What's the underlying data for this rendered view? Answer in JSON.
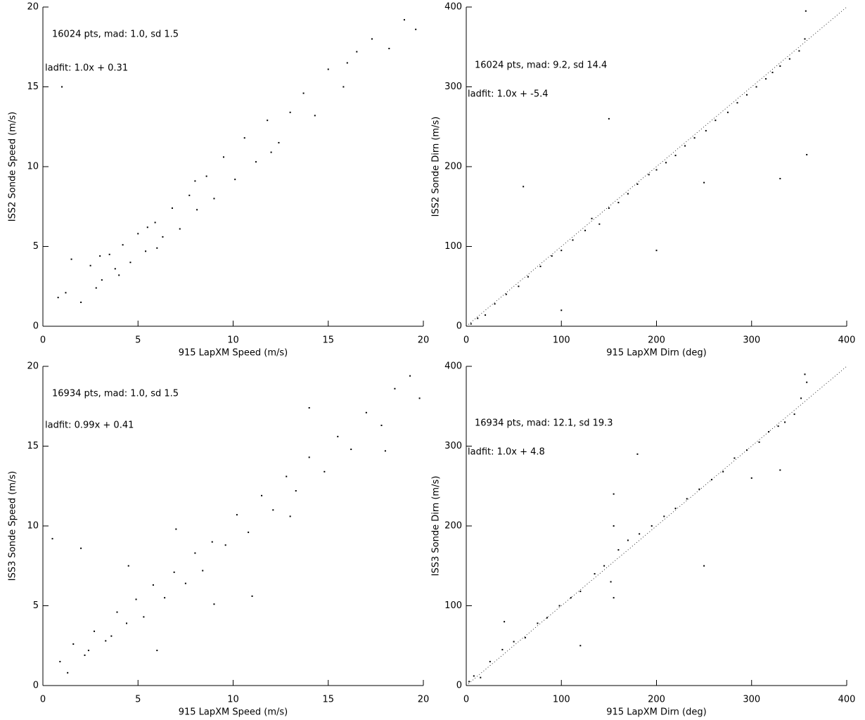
{
  "chart_data": [
    {
      "type": "scatter",
      "color": "#000000",
      "identity_line": false,
      "xlabel": "915 LapXM Speed (m/s)",
      "ylabel": "ISS2 Sonde Speed (m/s)",
      "annotations": [
        "16024 pts, mad: 1.0, sd 1.5",
        "ladfit: 1.0x + 0.31"
      ],
      "xlim": [
        0,
        20
      ],
      "ylim": [
        0,
        20
      ],
      "xticks": [
        0,
        5,
        10,
        15,
        20
      ],
      "yticks": [
        0,
        5,
        10,
        15,
        20
      ],
      "x": [
        1.2,
        2.0,
        2.5,
        3.1,
        3.5,
        3.8,
        4.2,
        4.6,
        5.0,
        5.4,
        5.9,
        6.3,
        6.8,
        7.2,
        7.7,
        8.1,
        8.6,
        9.0,
        9.5,
        10.1,
        10.6,
        11.2,
        11.8,
        12.4,
        13.0,
        13.7,
        14.3,
        15.0,
        15.8,
        16.5,
        17.3,
        18.2,
        19.0,
        19.6,
        2.8,
        4.0,
        6.0,
        8.0,
        1.5,
        0.8,
        3.0,
        5.5,
        12.0,
        1.0,
        16.0
      ],
      "y": [
        2.1,
        1.5,
        3.8,
        2.9,
        4.5,
        3.6,
        5.1,
        4.0,
        5.8,
        4.7,
        6.5,
        5.6,
        7.4,
        6.1,
        8.2,
        7.3,
        9.4,
        8.0,
        10.6,
        9.2,
        11.8,
        10.3,
        12.9,
        11.5,
        13.4,
        14.6,
        13.2,
        16.1,
        15.0,
        17.2,
        18.0,
        17.4,
        19.2,
        18.6,
        2.4,
        3.2,
        4.9,
        9.1,
        4.2,
        1.8,
        4.4,
        6.2,
        10.9,
        15.0,
        16.5
      ]
    },
    {
      "type": "scatter",
      "color": "#000000",
      "identity_line": true,
      "xlabel": "915 LapXM Dirn (deg)",
      "ylabel": "ISS2 Sonde Dirn (m/s)",
      "annotations": [
        "16024 pts, mad: 9.2, sd 14.4",
        "ladfit: 1.0x + -5.4"
      ],
      "xlim": [
        0,
        400
      ],
      "ylim": [
        0,
        400
      ],
      "xticks": [
        0,
        100,
        200,
        300,
        400
      ],
      "yticks": [
        0,
        100,
        200,
        300,
        400
      ],
      "x": [
        5,
        12,
        20,
        30,
        42,
        55,
        65,
        78,
        90,
        100,
        112,
        125,
        132,
        140,
        150,
        160,
        170,
        180,
        192,
        200,
        210,
        220,
        230,
        240,
        252,
        262,
        275,
        285,
        295,
        305,
        315,
        322,
        330,
        340,
        350,
        356,
        358,
        60,
        150,
        250,
        330,
        357,
        100,
        200
      ],
      "y": [
        3,
        10,
        14,
        28,
        40,
        50,
        62,
        75,
        88,
        95,
        108,
        120,
        135,
        128,
        148,
        155,
        166,
        178,
        190,
        196,
        205,
        214,
        226,
        236,
        245,
        258,
        268,
        280,
        290,
        300,
        310,
        318,
        326,
        335,
        345,
        360,
        215,
        175,
        260,
        180,
        185,
        395,
        20,
        95
      ]
    },
    {
      "type": "scatter",
      "color": "#000000",
      "identity_line": false,
      "xlabel": "915 LapXM Speed (m/s)",
      "ylabel": "ISS3 Sonde Speed (m/s)",
      "annotations": [
        "16934 pts, mad: 1.0, sd 1.5",
        "ladfit: 0.99x + 0.41"
      ],
      "xlim": [
        0,
        20
      ],
      "ylim": [
        0,
        20
      ],
      "xticks": [
        0,
        5,
        10,
        15,
        20
      ],
      "yticks": [
        0,
        5,
        10,
        15,
        20
      ],
      "x": [
        0.9,
        1.6,
        2.2,
        2.7,
        3.3,
        3.9,
        4.4,
        4.9,
        5.3,
        5.8,
        6.4,
        6.9,
        7.5,
        8.0,
        8.4,
        8.9,
        9.6,
        10.2,
        10.8,
        11.5,
        12.1,
        12.8,
        13.3,
        14.0,
        14.8,
        15.5,
        16.2,
        17.0,
        17.8,
        18.5,
        19.3,
        19.8,
        1.3,
        2.4,
        3.6,
        7.0,
        9.0,
        4.5,
        0.5,
        14.0,
        11.0,
        6.0,
        2.0,
        18.0,
        13.0
      ],
      "y": [
        1.5,
        2.6,
        1.9,
        3.4,
        2.8,
        4.6,
        3.9,
        5.4,
        4.3,
        6.3,
        5.5,
        7.1,
        6.4,
        8.3,
        7.2,
        9.0,
        8.8,
        10.7,
        9.6,
        11.9,
        11.0,
        13.1,
        12.2,
        14.3,
        13.4,
        15.6,
        14.8,
        17.1,
        16.3,
        18.6,
        19.4,
        18.0,
        0.8,
        2.2,
        3.1,
        9.8,
        5.1,
        7.5,
        9.2,
        17.4,
        5.6,
        2.2,
        8.6,
        14.7,
        10.6
      ]
    },
    {
      "type": "scatter",
      "color": "#000000",
      "identity_line": true,
      "xlabel": "915 LapXM Dirn (deg)",
      "ylabel": "ISS3 Sonde Dirn (m/s)",
      "annotations": [
        "16934 pts, mad: 12.1, sd 19.3",
        "ladfit: 1.0x + 4.8"
      ],
      "xlim": [
        0,
        400
      ],
      "ylim": [
        0,
        400
      ],
      "xticks": [
        0,
        100,
        200,
        300,
        400
      ],
      "yticks": [
        0,
        100,
        200,
        300,
        400
      ],
      "x": [
        3,
        8,
        15,
        25,
        38,
        50,
        62,
        75,
        85,
        98,
        110,
        120,
        135,
        145,
        152,
        155,
        155,
        155,
        160,
        170,
        182,
        195,
        208,
        220,
        232,
        245,
        258,
        270,
        282,
        295,
        308,
        318,
        328,
        335,
        345,
        352,
        356,
        358,
        40,
        120,
        300,
        330,
        250,
        180
      ],
      "y": [
        5,
        12,
        10,
        30,
        45,
        55,
        60,
        78,
        85,
        100,
        110,
        118,
        140,
        150,
        130,
        110,
        240,
        200,
        170,
        182,
        190,
        200,
        212,
        222,
        234,
        246,
        258,
        268,
        285,
        295,
        305,
        318,
        325,
        330,
        340,
        360,
        390,
        380,
        80,
        50,
        260,
        270,
        150,
        290
      ]
    }
  ]
}
